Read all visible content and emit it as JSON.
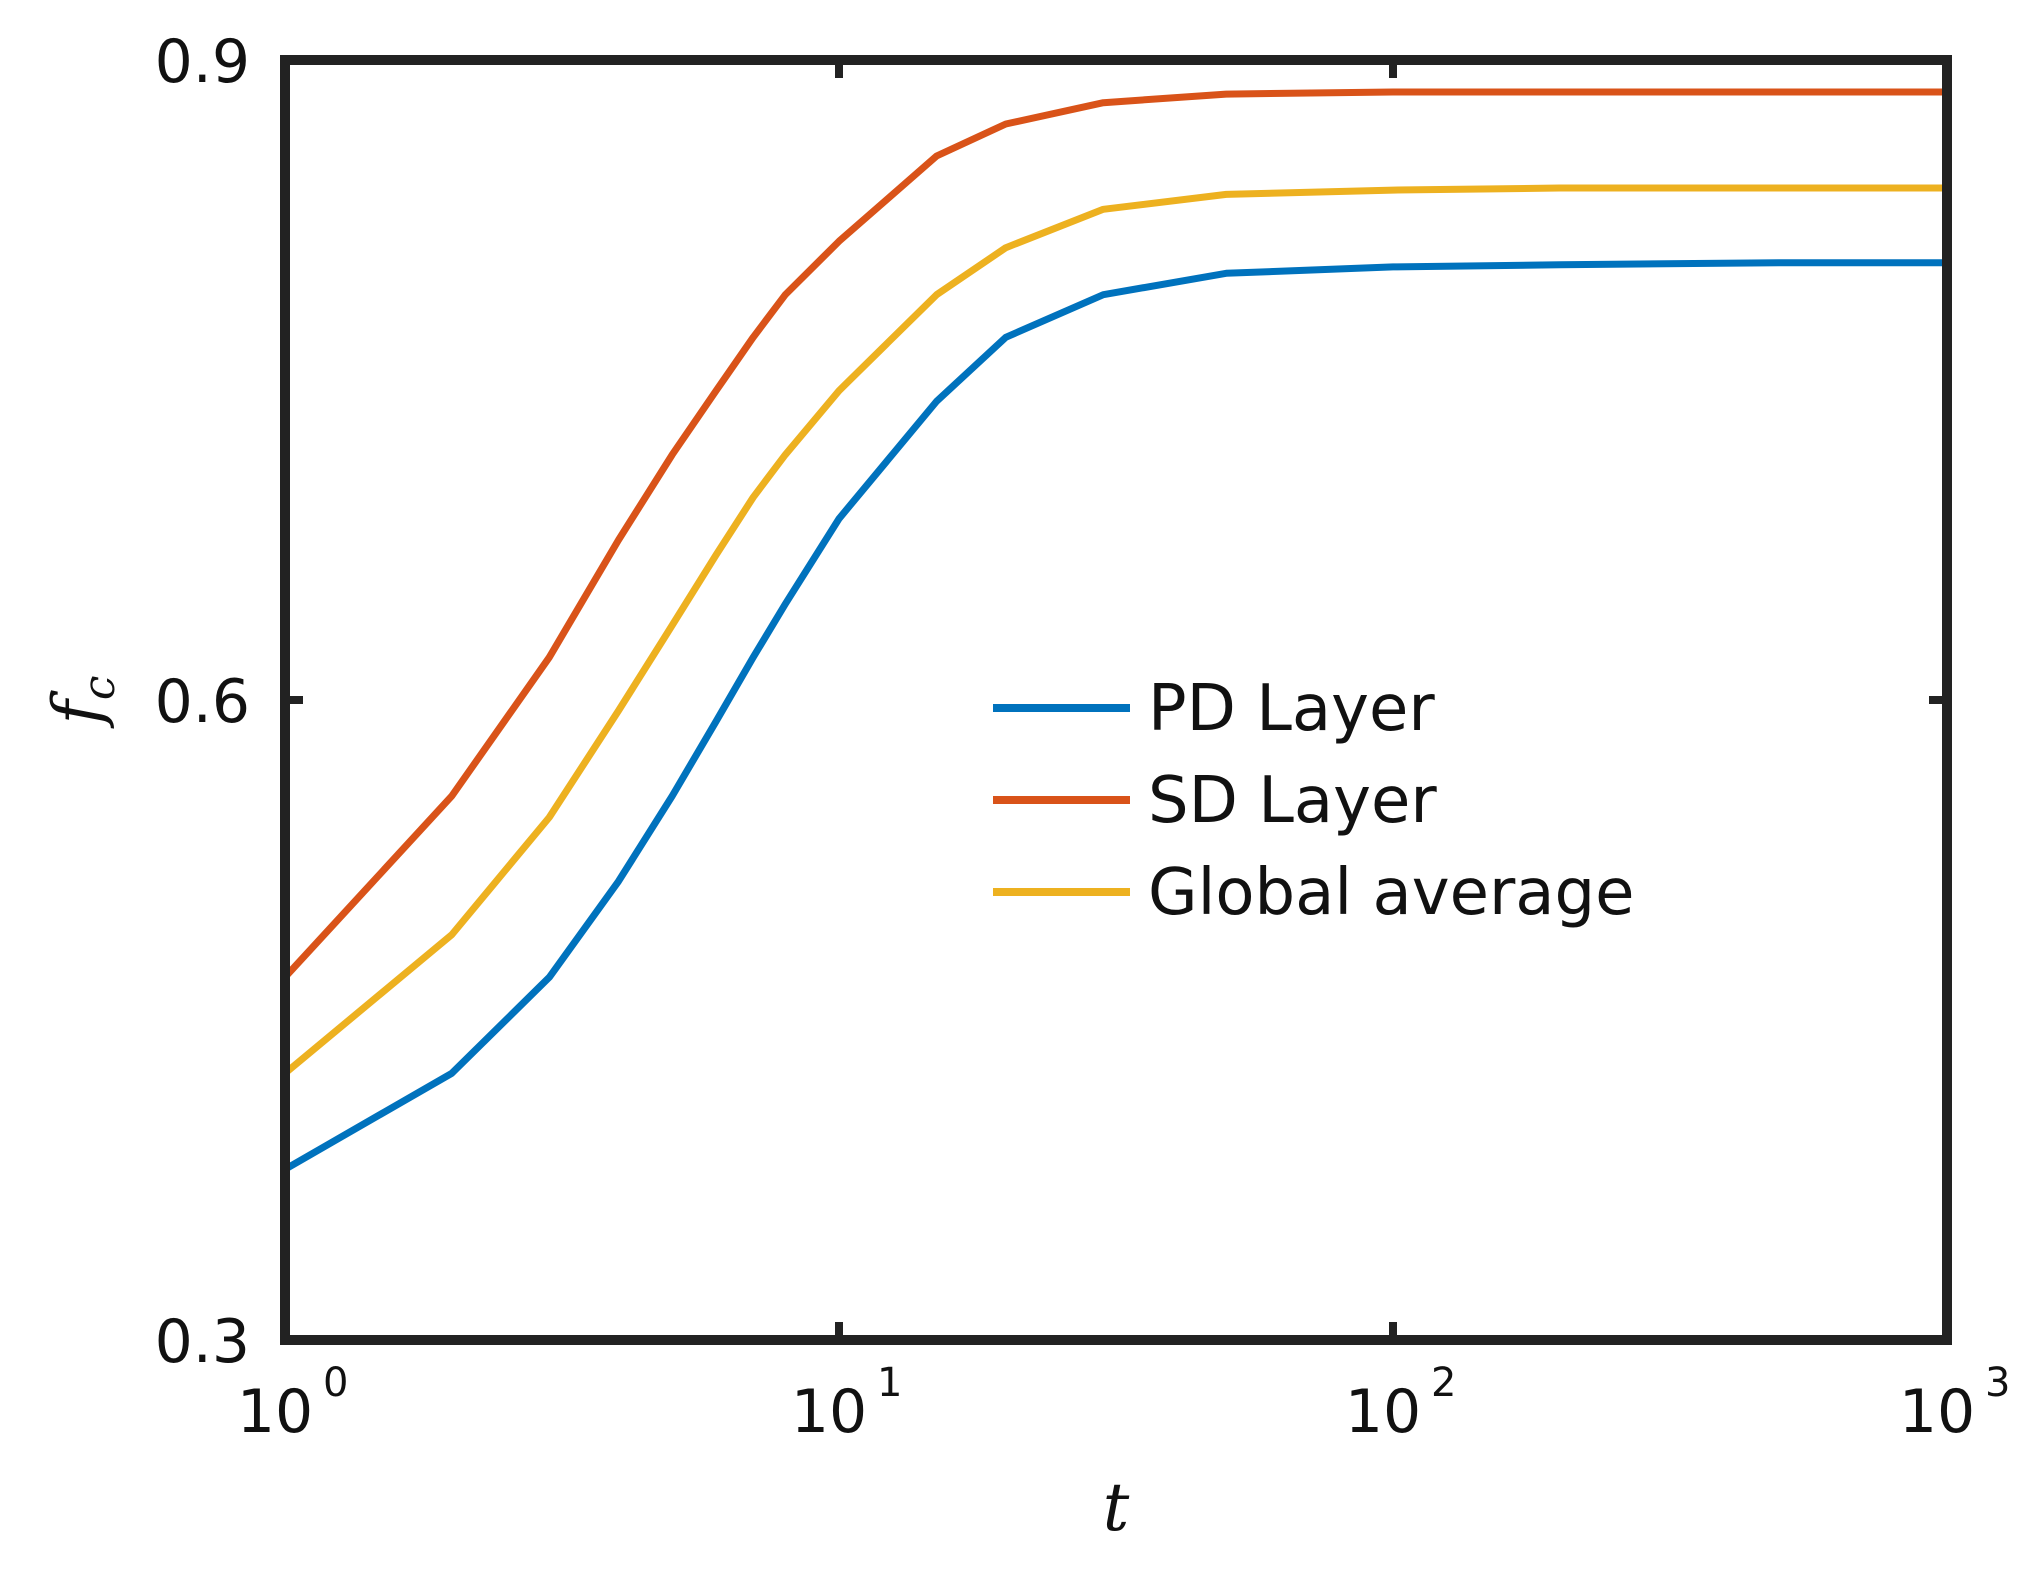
{
  "chart_data": {
    "type": "line",
    "xscale": "log",
    "xlim": [
      1,
      1000
    ],
    "ylim": [
      0.3,
      0.9
    ],
    "xlabel": "t",
    "ylabel": "f",
    "ylabel_subscript": "c",
    "x_ticks": [
      {
        "base": "10",
        "exp": "0",
        "value": 1
      },
      {
        "base": "10",
        "exp": "1",
        "value": 10
      },
      {
        "base": "10",
        "exp": "2",
        "value": 100
      },
      {
        "base": "10",
        "exp": "3",
        "value": 1000
      }
    ],
    "y_ticks": [
      {
        "label": "0.3",
        "value": 0.3
      },
      {
        "label": "0.6",
        "value": 0.6
      },
      {
        "label": "0.9",
        "value": 0.9
      }
    ],
    "legend_position": "center-right",
    "x": [
      1,
      2,
      3,
      4,
      5,
      6,
      7,
      8,
      10,
      15,
      20,
      30,
      50,
      100,
      200,
      500,
      1000
    ],
    "series": [
      {
        "name": "PD Layer",
        "color": "#0072BD",
        "values": [
          0.38,
          0.425,
          0.47,
          0.515,
          0.555,
          0.59,
          0.62,
          0.645,
          0.685,
          0.74,
          0.77,
          0.79,
          0.8,
          0.803,
          0.804,
          0.805,
          0.805
        ]
      },
      {
        "name": "SD Layer",
        "color": "#D95319",
        "values": [
          0.47,
          0.555,
          0.62,
          0.675,
          0.715,
          0.745,
          0.77,
          0.79,
          0.815,
          0.855,
          0.87,
          0.88,
          0.884,
          0.885,
          0.885,
          0.885,
          0.885
        ]
      },
      {
        "name": "Global average",
        "color": "#EDB120",
        "values": [
          0.425,
          0.49,
          0.545,
          0.595,
          0.635,
          0.668,
          0.695,
          0.715,
          0.745,
          0.79,
          0.812,
          0.83,
          0.837,
          0.839,
          0.84,
          0.84,
          0.84
        ]
      }
    ]
  }
}
